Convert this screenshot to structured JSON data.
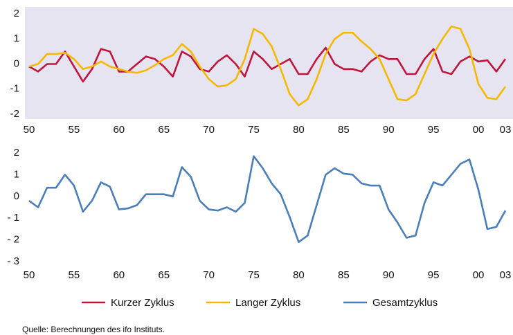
{
  "chart_data": [
    {
      "type": "line",
      "x": [
        1950,
        1951,
        1952,
        1953,
        1954,
        1955,
        1956,
        1957,
        1958,
        1959,
        1960,
        1961,
        1962,
        1963,
        1964,
        1965,
        1966,
        1967,
        1968,
        1969,
        1970,
        1971,
        1972,
        1973,
        1974,
        1975,
        1976,
        1977,
        1978,
        1979,
        1980,
        1981,
        1982,
        1983,
        1984,
        1985,
        1986,
        1987,
        1988,
        1989,
        1990,
        1991,
        1992,
        1993,
        1994,
        1995,
        1996,
        1997,
        1998,
        1999,
        2000,
        2001,
        2002,
        2003
      ],
      "series": [
        {
          "name": "Kurzer Zyklus",
          "color": "#c0143c",
          "values": [
            -0.1,
            -0.3,
            0.0,
            0.0,
            0.5,
            -0.1,
            -0.7,
            -0.2,
            0.6,
            0.5,
            -0.3,
            -0.3,
            0.0,
            0.3,
            0.2,
            -0.1,
            -0.5,
            0.5,
            0.3,
            -0.2,
            -0.3,
            0.1,
            0.35,
            0.0,
            -0.5,
            0.5,
            0.2,
            -0.2,
            0.0,
            0.2,
            -0.4,
            -0.4,
            0.2,
            0.65,
            0.0,
            -0.2,
            -0.2,
            -0.3,
            0.1,
            0.35,
            0.2,
            0.2,
            -0.4,
            -0.4,
            0.2,
            0.6,
            -0.3,
            -0.4,
            0.1,
            0.3,
            0.1,
            0.15,
            -0.3,
            0.2
          ]
        },
        {
          "name": "Langer Zyklus",
          "color": "#f5b800",
          "values": [
            -0.1,
            0.0,
            0.4,
            0.4,
            0.45,
            0.2,
            -0.2,
            -0.1,
            0.1,
            -0.1,
            -0.2,
            -0.3,
            -0.35,
            -0.25,
            -0.05,
            0.2,
            0.35,
            0.8,
            0.5,
            -0.1,
            -0.6,
            -0.9,
            -0.85,
            -0.6,
            0.2,
            1.4,
            1.2,
            0.7,
            -0.2,
            -1.2,
            -1.65,
            -1.4,
            -0.6,
            0.4,
            1.0,
            1.25,
            1.25,
            0.9,
            0.6,
            0.2,
            -0.6,
            -1.4,
            -1.45,
            -1.2,
            -0.4,
            0.4,
            1.0,
            1.5,
            1.4,
            0.6,
            -0.8,
            -1.35,
            -1.4,
            -0.9
          ]
        }
      ],
      "xlim": [
        1950,
        2003
      ],
      "xticks": [
        {
          "value": 1950,
          "label": "50"
        },
        {
          "value": 1955,
          "label": "55"
        },
        {
          "value": 1960,
          "label": "60"
        },
        {
          "value": 1965,
          "label": "65"
        },
        {
          "value": 1970,
          "label": "70"
        },
        {
          "value": 1975,
          "label": "75"
        },
        {
          "value": 1980,
          "label": "80"
        },
        {
          "value": 1985,
          "label": "85"
        },
        {
          "value": 1990,
          "label": "90"
        },
        {
          "value": 1995,
          "label": "95"
        },
        {
          "value": 2000,
          "label": "00"
        },
        {
          "value": 2003,
          "label": "03"
        }
      ],
      "ylim": [
        -2,
        2
      ],
      "yticks": [
        -2,
        -1,
        0,
        1,
        2
      ],
      "grid": false,
      "background": "#e6e4f1"
    },
    {
      "type": "line",
      "x": [
        1950,
        1951,
        1952,
        1953,
        1954,
        1955,
        1956,
        1957,
        1958,
        1959,
        1960,
        1961,
        1962,
        1963,
        1964,
        1965,
        1966,
        1967,
        1968,
        1969,
        1970,
        1971,
        1972,
        1973,
        1974,
        1975,
        1976,
        1977,
        1978,
        1979,
        1980,
        1981,
        1982,
        1983,
        1984,
        1985,
        1986,
        1987,
        1988,
        1989,
        1990,
        1991,
        1992,
        1993,
        1994,
        1995,
        1996,
        1997,
        1998,
        1999,
        2000,
        2001,
        2002,
        2003
      ],
      "series": [
        {
          "name": "Gesamtzyklus",
          "color": "#4a7ebb",
          "values": [
            -0.2,
            -0.5,
            0.4,
            0.4,
            1.0,
            0.5,
            -0.7,
            -0.2,
            0.65,
            0.45,
            -0.6,
            -0.55,
            -0.4,
            0.1,
            0.1,
            0.1,
            0.0,
            1.35,
            0.9,
            -0.2,
            -0.6,
            -0.65,
            -0.5,
            -0.7,
            -0.3,
            1.85,
            1.3,
            0.6,
            0.1,
            -0.95,
            -2.1,
            -1.8,
            -0.4,
            1.0,
            1.3,
            1.05,
            1.0,
            0.6,
            0.5,
            0.5,
            -0.6,
            -1.2,
            -1.9,
            -1.8,
            -0.3,
            0.65,
            0.5,
            1.0,
            1.5,
            1.7,
            0.3,
            -1.5,
            -1.4,
            -0.65
          ]
        }
      ],
      "xlim": [
        1950,
        2003
      ],
      "xticks": [
        {
          "value": 1950,
          "label": "50"
        },
        {
          "value": 1955,
          "label": "55"
        },
        {
          "value": 1960,
          "label": "60"
        },
        {
          "value": 1965,
          "label": "65"
        },
        {
          "value": 1970,
          "label": "70"
        },
        {
          "value": 1975,
          "label": "75"
        },
        {
          "value": 1980,
          "label": "80"
        },
        {
          "value": 1985,
          "label": "85"
        },
        {
          "value": 1990,
          "label": "90"
        },
        {
          "value": 1995,
          "label": "95"
        },
        {
          "value": 2000,
          "label": "00"
        },
        {
          "value": 2003,
          "label": "03"
        }
      ],
      "ylim": [
        -3,
        2
      ],
      "yticks": [
        {
          "value": -3,
          "label": "- 3"
        },
        {
          "value": -2,
          "label": "- 2"
        },
        {
          "value": -1,
          "label": "- 1"
        },
        0,
        1,
        2
      ],
      "grid": false
    }
  ],
  "source": "Quelle: Berechnungen des ifo Instituts."
}
